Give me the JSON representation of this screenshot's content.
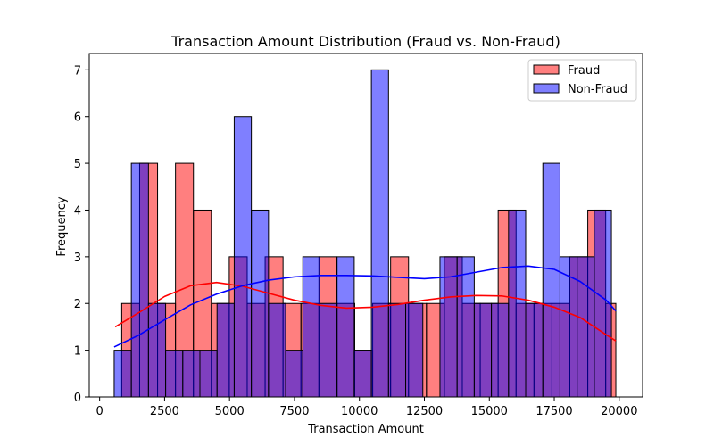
{
  "chart_data": {
    "type": "bar",
    "title": "Transaction Amount Distribution (Fraud vs. Non-Fraud)",
    "xlabel": "Transaction Amount",
    "ylabel": "Frequency",
    "xlim": [
      -400,
      20900
    ],
    "ylim": [
      0,
      7.35
    ],
    "xticks": [
      0,
      2500,
      5000,
      7500,
      10000,
      12500,
      15000,
      17500,
      20000
    ],
    "yticks": [
      0,
      1,
      2,
      3,
      4,
      5,
      6,
      7
    ],
    "legend_position": "top-right",
    "grid": false,
    "series": [
      {
        "name": "Fraud",
        "color": "#ff0000",
        "fill_opacity": 0.5,
        "bins": [
          {
            "x0": 850,
            "x1": 1540,
            "count": 2
          },
          {
            "x0": 1540,
            "x1": 2230,
            "count": 5
          },
          {
            "x0": 2230,
            "x1": 2920,
            "count": 2
          },
          {
            "x0": 2920,
            "x1": 3610,
            "count": 5
          },
          {
            "x0": 3610,
            "x1": 4300,
            "count": 4
          },
          {
            "x0": 4300,
            "x1": 4990,
            "count": 2
          },
          {
            "x0": 4990,
            "x1": 5680,
            "count": 3
          },
          {
            "x0": 5680,
            "x1": 6370,
            "count": 2
          },
          {
            "x0": 6370,
            "x1": 7060,
            "count": 3
          },
          {
            "x0": 7060,
            "x1": 7750,
            "count": 2
          },
          {
            "x0": 7750,
            "x1": 8440,
            "count": 2
          },
          {
            "x0": 8440,
            "x1": 9130,
            "count": 3
          },
          {
            "x0": 9130,
            "x1": 9820,
            "count": 2
          },
          {
            "x0": 9820,
            "x1": 10510,
            "count": 1
          },
          {
            "x0": 10510,
            "x1": 11200,
            "count": 2
          },
          {
            "x0": 11200,
            "x1": 11890,
            "count": 3
          },
          {
            "x0": 11890,
            "x1": 12580,
            "count": 2
          },
          {
            "x0": 12580,
            "x1": 13270,
            "count": 2
          },
          {
            "x0": 13270,
            "x1": 13960,
            "count": 3
          },
          {
            "x0": 13960,
            "x1": 14650,
            "count": 2
          },
          {
            "x0": 14650,
            "x1": 15340,
            "count": 2
          },
          {
            "x0": 15340,
            "x1": 16030,
            "count": 4
          },
          {
            "x0": 16030,
            "x1": 16720,
            "count": 2
          },
          {
            "x0": 16720,
            "x1": 17410,
            "count": 2
          },
          {
            "x0": 17410,
            "x1": 18100,
            "count": 2
          },
          {
            "x0": 18100,
            "x1": 18790,
            "count": 3
          },
          {
            "x0": 18790,
            "x1": 19480,
            "count": 4
          },
          {
            "x0": 19480,
            "x1": 19870,
            "count": 2
          }
        ],
        "kde": [
          [
            600,
            1.5
          ],
          [
            1500,
            1.8
          ],
          [
            2500,
            2.15
          ],
          [
            3500,
            2.38
          ],
          [
            4500,
            2.45
          ],
          [
            5500,
            2.37
          ],
          [
            6500,
            2.22
          ],
          [
            7500,
            2.07
          ],
          [
            8500,
            1.96
          ],
          [
            9500,
            1.9
          ],
          [
            10500,
            1.92
          ],
          [
            11500,
            1.98
          ],
          [
            12500,
            2.07
          ],
          [
            13500,
            2.14
          ],
          [
            14500,
            2.17
          ],
          [
            15500,
            2.16
          ],
          [
            16500,
            2.07
          ],
          [
            17500,
            1.92
          ],
          [
            18500,
            1.7
          ],
          [
            19500,
            1.33
          ],
          [
            19870,
            1.2
          ]
        ]
      },
      {
        "name": "Non-Fraud",
        "color": "#0000ff",
        "fill_opacity": 0.5,
        "bins": [
          {
            "x0": 560,
            "x1": 1220,
            "count": 1
          },
          {
            "x0": 1220,
            "x1": 1880,
            "count": 5
          },
          {
            "x0": 1880,
            "x1": 2540,
            "count": 2
          },
          {
            "x0": 2540,
            "x1": 3200,
            "count": 1
          },
          {
            "x0": 3200,
            "x1": 3860,
            "count": 1
          },
          {
            "x0": 3860,
            "x1": 4520,
            "count": 1
          },
          {
            "x0": 4520,
            "x1": 5180,
            "count": 2
          },
          {
            "x0": 5180,
            "x1": 5840,
            "count": 6
          },
          {
            "x0": 5840,
            "x1": 6500,
            "count": 4
          },
          {
            "x0": 6500,
            "x1": 7160,
            "count": 2
          },
          {
            "x0": 7160,
            "x1": 7820,
            "count": 1
          },
          {
            "x0": 7820,
            "x1": 8480,
            "count": 3
          },
          {
            "x0": 8480,
            "x1": 9140,
            "count": 2
          },
          {
            "x0": 9140,
            "x1": 9800,
            "count": 3
          },
          {
            "x0": 9800,
            "x1": 10460,
            "count": 1
          },
          {
            "x0": 10460,
            "x1": 11120,
            "count": 7
          },
          {
            "x0": 11120,
            "x1": 11780,
            "count": 2
          },
          {
            "x0": 11780,
            "x1": 12440,
            "count": 2
          },
          {
            "x0": 12440,
            "x1": 13100,
            "count": 0
          },
          {
            "x0": 13100,
            "x1": 13760,
            "count": 3
          },
          {
            "x0": 13760,
            "x1": 14420,
            "count": 3
          },
          {
            "x0": 14420,
            "x1": 15080,
            "count": 2
          },
          {
            "x0": 15080,
            "x1": 15740,
            "count": 2
          },
          {
            "x0": 15740,
            "x1": 16400,
            "count": 4
          },
          {
            "x0": 16400,
            "x1": 17060,
            "count": 2
          },
          {
            "x0": 17060,
            "x1": 17720,
            "count": 5
          },
          {
            "x0": 17720,
            "x1": 18380,
            "count": 3
          },
          {
            "x0": 18380,
            "x1": 19040,
            "count": 3
          },
          {
            "x0": 19040,
            "x1": 19700,
            "count": 4
          },
          {
            "x0": 19700,
            "x1": 19870,
            "count": 0
          }
        ],
        "kde": [
          [
            560,
            1.07
          ],
          [
            1500,
            1.32
          ],
          [
            2500,
            1.65
          ],
          [
            3500,
            1.97
          ],
          [
            4500,
            2.2
          ],
          [
            5500,
            2.38
          ],
          [
            6500,
            2.5
          ],
          [
            7500,
            2.57
          ],
          [
            8500,
            2.6
          ],
          [
            9500,
            2.6
          ],
          [
            10500,
            2.59
          ],
          [
            11500,
            2.56
          ],
          [
            12500,
            2.53
          ],
          [
            13500,
            2.57
          ],
          [
            14500,
            2.67
          ],
          [
            15500,
            2.77
          ],
          [
            16500,
            2.8
          ],
          [
            17500,
            2.73
          ],
          [
            18500,
            2.47
          ],
          [
            19500,
            2.07
          ],
          [
            19870,
            1.84
          ]
        ]
      }
    ]
  }
}
